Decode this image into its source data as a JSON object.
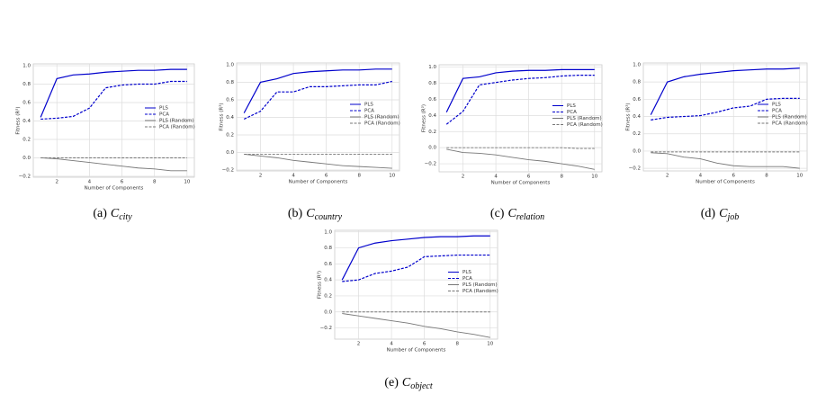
{
  "chart_data": [
    {
      "type": "line",
      "caption_label": "(a)",
      "caption_symbol": "C",
      "caption_subscript": "city",
      "xlabel": "Number of Components",
      "ylabel": "Fitness (R²)",
      "x": [
        1,
        2,
        3,
        4,
        5,
        6,
        7,
        8,
        9,
        10
      ],
      "xlim": [
        0.55,
        10.45
      ],
      "xticks": [
        2,
        4,
        6,
        8,
        10
      ],
      "ylim": [
        -0.21,
        1.02
      ],
      "yticks": [
        {
          "value": -0.2,
          "label": "−0.2"
        },
        {
          "value": 0,
          "label": "0.0"
        },
        0.2,
        0.4,
        0.6,
        0.8,
        {
          "value": 1,
          "label": "1.0"
        }
      ],
      "grid": true,
      "legend": "center right",
      "series": [
        {
          "name": "PLS",
          "color": "#0000cc",
          "style": "solid",
          "values": [
            0.44,
            0.86,
            0.9,
            0.91,
            0.93,
            0.94,
            0.95,
            0.95,
            0.96,
            0.96
          ]
        },
        {
          "name": "PCA",
          "color": "#0000cc",
          "style": "dashed",
          "values": [
            0.42,
            0.43,
            0.45,
            0.54,
            0.76,
            0.79,
            0.8,
            0.8,
            0.83,
            0.83
          ]
        },
        {
          "name": "PLS (Random)",
          "color": "#777777",
          "style": "solid",
          "values": [
            0,
            -0.01,
            -0.03,
            -0.05,
            -0.07,
            -0.09,
            -0.11,
            -0.12,
            -0.14,
            -0.14
          ]
        },
        {
          "name": "PCA (Random)",
          "color": "#777777",
          "style": "dashed",
          "values": [
            0,
            0,
            0,
            0,
            0,
            0,
            0,
            0,
            0,
            0
          ]
        }
      ]
    },
    {
      "type": "line",
      "caption_label": "(b)",
      "caption_symbol": "C",
      "caption_subscript": "country",
      "xlabel": "Number of Components",
      "ylabel": "Fitness (R²)",
      "x": [
        1,
        2,
        3,
        4,
        5,
        6,
        7,
        8,
        9,
        10
      ],
      "xlim": [
        0.55,
        10.45
      ],
      "xticks": [
        2,
        4,
        6,
        8,
        10
      ],
      "ylim": [
        -0.21,
        1.02
      ],
      "yticks": [
        {
          "value": -0.2,
          "label": "−0.2"
        },
        {
          "value": 0,
          "label": "0.0"
        },
        0.2,
        0.4,
        0.6,
        0.8,
        {
          "value": 1,
          "label": "1.0"
        }
      ],
      "grid": true,
      "legend": "center right",
      "series": [
        {
          "name": "PLS",
          "color": "#0000cc",
          "style": "solid",
          "values": [
            0.45,
            0.8,
            0.84,
            0.9,
            0.92,
            0.93,
            0.94,
            0.94,
            0.95,
            0.95
          ]
        },
        {
          "name": "PCA",
          "color": "#0000cc",
          "style": "dashed",
          "values": [
            0.38,
            0.47,
            0.69,
            0.69,
            0.75,
            0.75,
            0.76,
            0.77,
            0.77,
            0.81
          ]
        },
        {
          "name": "PLS (Random)",
          "color": "#777777",
          "style": "solid",
          "values": [
            -0.02,
            -0.04,
            -0.06,
            -0.09,
            -0.11,
            -0.13,
            -0.15,
            -0.16,
            -0.17,
            -0.18
          ]
        },
        {
          "name": "PCA (Random)",
          "color": "#777777",
          "style": "dashed",
          "values": [
            -0.02,
            -0.02,
            -0.02,
            -0.02,
            -0.02,
            -0.02,
            -0.02,
            -0.02,
            -0.02,
            -0.02
          ]
        }
      ]
    },
    {
      "type": "line",
      "caption_label": "(c)",
      "caption_symbol": "C",
      "caption_subscript": "relation",
      "xlabel": "Number of Components",
      "ylabel": "Fitness (R²)",
      "x": [
        1,
        2,
        3,
        4,
        5,
        6,
        7,
        8,
        9,
        10
      ],
      "xlim": [
        0.55,
        10.45
      ],
      "xticks": [
        2,
        4,
        6,
        8,
        10
      ],
      "ylim": [
        -0.3,
        1.03
      ],
      "yticks": [
        {
          "value": -0.2,
          "label": "−0.2"
        },
        {
          "value": 0,
          "label": "0.0"
        },
        0.2,
        0.4,
        0.6,
        0.8,
        {
          "value": 1,
          "label": "1.0"
        }
      ],
      "grid": true,
      "legend": "center right",
      "series": [
        {
          "name": "PLS",
          "color": "#0000cc",
          "style": "solid",
          "values": [
            0.44,
            0.86,
            0.88,
            0.93,
            0.95,
            0.96,
            0.96,
            0.97,
            0.97,
            0.97
          ]
        },
        {
          "name": "PCA",
          "color": "#0000cc",
          "style": "dashed",
          "values": [
            0.29,
            0.45,
            0.78,
            0.81,
            0.84,
            0.86,
            0.87,
            0.89,
            0.9,
            0.9
          ]
        },
        {
          "name": "PLS (Random)",
          "color": "#777777",
          "style": "solid",
          "values": [
            -0.02,
            -0.06,
            -0.07,
            -0.09,
            -0.12,
            -0.15,
            -0.17,
            -0.2,
            -0.23,
            -0.27
          ]
        },
        {
          "name": "PCA (Random)",
          "color": "#777777",
          "style": "dashed",
          "values": [
            0,
            0,
            0,
            0,
            0,
            0,
            0,
            0,
            -0.01,
            -0.01
          ]
        }
      ]
    },
    {
      "type": "line",
      "caption_label": "(d)",
      "caption_symbol": "C",
      "caption_subscript": "job",
      "xlabel": "Number of Components",
      "ylabel": "Fitness (R²)",
      "x": [
        1,
        2,
        3,
        4,
        5,
        6,
        7,
        8,
        9,
        10
      ],
      "xlim": [
        0.55,
        10.45
      ],
      "xticks": [
        2,
        4,
        6,
        8,
        10
      ],
      "ylim": [
        -0.23,
        1.02
      ],
      "yticks": [
        {
          "value": -0.2,
          "label": "−0.2"
        },
        {
          "value": 0,
          "label": "0.0"
        },
        0.2,
        0.4,
        0.6,
        0.8,
        {
          "value": 1,
          "label": "1.0"
        }
      ],
      "grid": true,
      "legend": "center right",
      "series": [
        {
          "name": "PLS",
          "color": "#0000cc",
          "style": "solid",
          "values": [
            0.42,
            0.8,
            0.86,
            0.89,
            0.91,
            0.93,
            0.94,
            0.95,
            0.95,
            0.96
          ]
        },
        {
          "name": "PCA",
          "color": "#0000cc",
          "style": "dashed",
          "values": [
            0.36,
            0.39,
            0.4,
            0.41,
            0.45,
            0.5,
            0.52,
            0.6,
            0.61,
            0.61
          ]
        },
        {
          "name": "PLS (Random)",
          "color": "#777777",
          "style": "solid",
          "values": [
            -0.02,
            -0.03,
            -0.07,
            -0.09,
            -0.14,
            -0.17,
            -0.18,
            -0.18,
            -0.18,
            -0.2
          ]
        },
        {
          "name": "PCA (Random)",
          "color": "#777777",
          "style": "dashed",
          "values": [
            -0.01,
            -0.01,
            -0.01,
            -0.01,
            -0.01,
            -0.01,
            -0.01,
            -0.01,
            -0.01,
            -0.01
          ]
        }
      ]
    },
    {
      "type": "line",
      "caption_label": "(e)",
      "caption_symbol": "C",
      "caption_subscript": "object",
      "xlabel": "Number of Components",
      "ylabel": "Fitness (R²)",
      "x": [
        1,
        2,
        3,
        4,
        5,
        6,
        7,
        8,
        9,
        10
      ],
      "xlim": [
        0.55,
        10.45
      ],
      "xticks": [
        2,
        4,
        6,
        8,
        10
      ],
      "ylim": [
        -0.34,
        1.02
      ],
      "yticks": [
        {
          "value": -0.2,
          "label": "−0.2"
        },
        {
          "value": 0,
          "label": "0.0"
        },
        0.2,
        0.4,
        0.6,
        0.8,
        {
          "value": 1,
          "label": "1.0"
        }
      ],
      "grid": true,
      "legend": "center right",
      "series": [
        {
          "name": "PLS",
          "color": "#0000cc",
          "style": "solid",
          "values": [
            0.4,
            0.8,
            0.86,
            0.89,
            0.91,
            0.93,
            0.94,
            0.94,
            0.95,
            0.95
          ]
        },
        {
          "name": "PCA",
          "color": "#0000cc",
          "style": "dashed",
          "values": [
            0.38,
            0.4,
            0.48,
            0.51,
            0.56,
            0.69,
            0.7,
            0.71,
            0.71,
            0.71
          ]
        },
        {
          "name": "PLS (Random)",
          "color": "#777777",
          "style": "solid",
          "values": [
            -0.02,
            -0.05,
            -0.08,
            -0.11,
            -0.14,
            -0.18,
            -0.21,
            -0.25,
            -0.28,
            -0.32
          ]
        },
        {
          "name": "PCA (Random)",
          "color": "#777777",
          "style": "dashed",
          "values": [
            0,
            0,
            0,
            0,
            0,
            0,
            0,
            0,
            0,
            0
          ]
        }
      ]
    }
  ]
}
